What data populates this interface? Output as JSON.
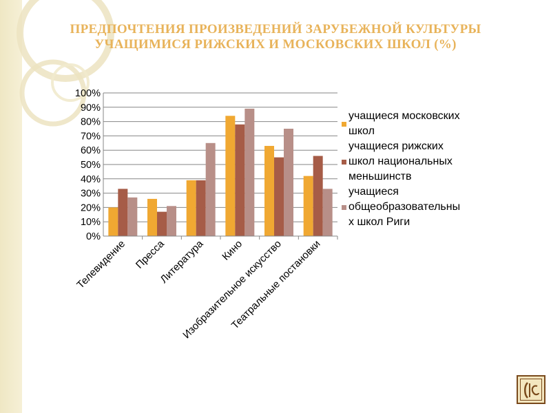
{
  "slide": {
    "title_line1": "ПРЕДПОЧТЕНИЯ ПРОИЗВЕДЕНИЙ ЗАРУБЕЖНОЙ КУЛЬТУРЫ",
    "title_line2": "УЧАЩИМИСЯ РИЖСКИХ И МОСКОВСКИХ ШКОЛ (%)",
    "title_color": "#e8b35a",
    "logo_icon": "monogram-logo-icon"
  },
  "chart_data": {
    "type": "bar",
    "categories": [
      "Телевидение",
      "Пресса",
      "Литература",
      "Кино",
      "Изобразительное искусство",
      "Театральные постановки"
    ],
    "series": [
      {
        "name": "учащиеся московских школ",
        "values": [
          20,
          26,
          39,
          84,
          63,
          42
        ],
        "color": "#f0a832"
      },
      {
        "name": "учащиеся рижских школ национальных меньшинств",
        "values": [
          33,
          17,
          39,
          78,
          55,
          56
        ],
        "color": "#a65c47"
      },
      {
        "name": "учащиеся общеобразовательных школ Риги",
        "values": [
          27,
          21,
          65,
          89,
          75,
          33
        ],
        "color": "#b88f88"
      }
    ],
    "legend_lines": [
      [
        "учащиеся московских",
        "школ"
      ],
      [
        "учащиеся рижских",
        "школ национальных",
        "меньшинств"
      ],
      [
        "учащиеся",
        "общеобразовательны",
        "х школ Риги"
      ]
    ],
    "y_ticks": [
      "0%",
      "10%",
      "20%",
      "30%",
      "40%",
      "50%",
      "60%",
      "70%",
      "80%",
      "90%",
      "100%"
    ],
    "ylim": [
      0,
      100
    ],
    "grid": true,
    "legend_position": "right"
  }
}
